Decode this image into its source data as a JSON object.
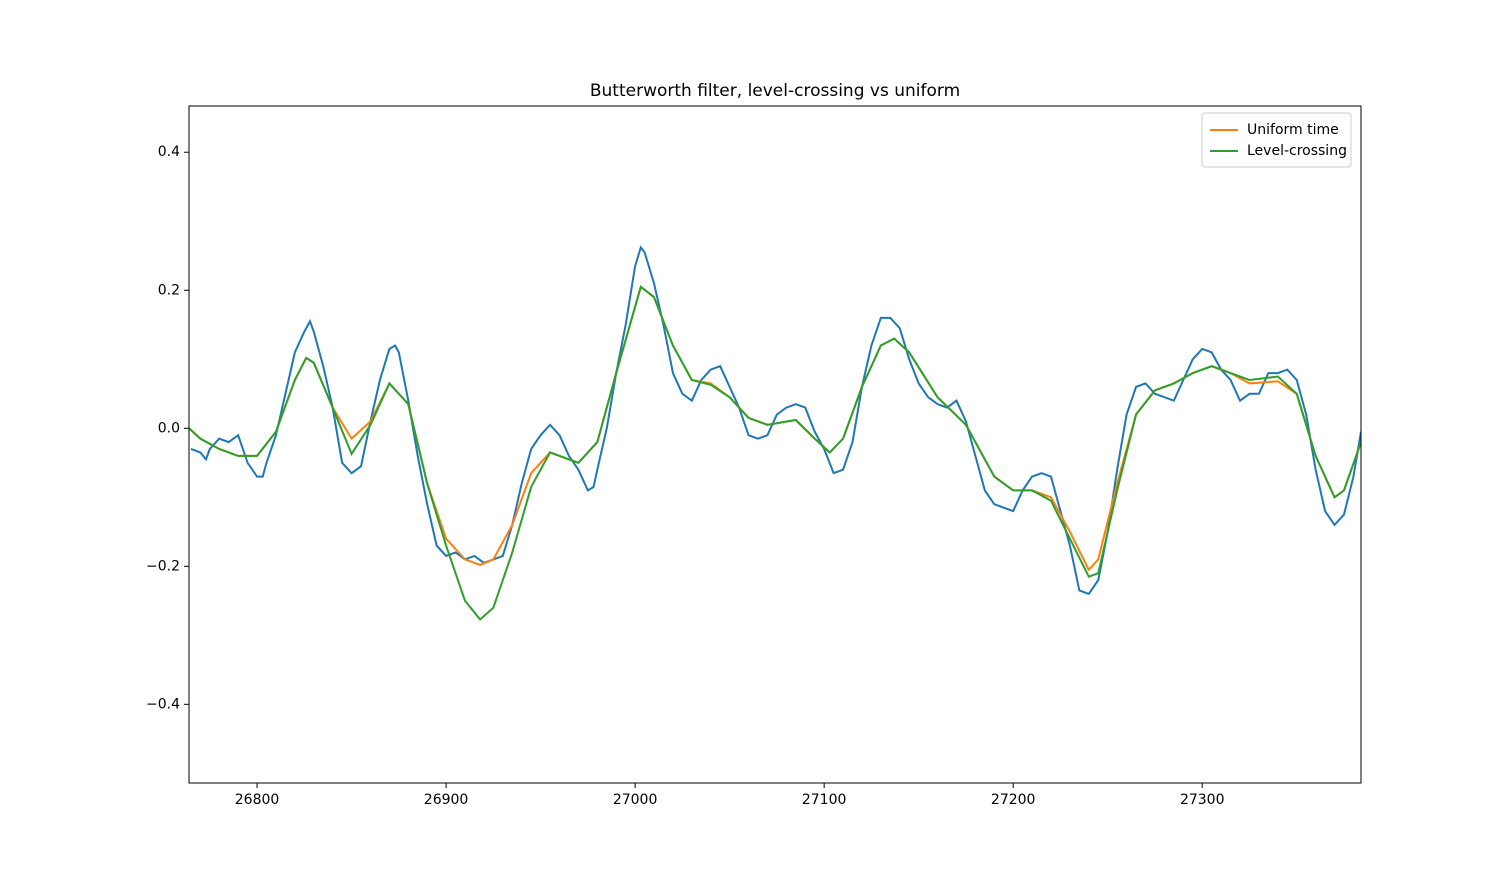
{
  "chart_data": {
    "type": "line",
    "title": "Butterworth filter, level-crossing vs uniform",
    "xlim": [
      26764,
      27384
    ],
    "xticks": [
      26800,
      26900,
      27000,
      27100,
      27200,
      27300
    ],
    "ylim": [
      -0.514,
      0.467
    ],
    "yticks": [
      {
        "value": -0.4,
        "label": "−0.4"
      },
      {
        "value": -0.2,
        "label": "−0.2"
      },
      {
        "value": 0,
        "label": "0.0"
      },
      0.2,
      0.4
    ],
    "legend": "upper right",
    "series": [
      {
        "color": "#1f77b4",
        "x": [
          26765,
          26770,
          26773,
          26775,
          26780,
          26785,
          26790,
          26795,
          26800,
          26803,
          26805,
          26810,
          26815,
          26820,
          26825,
          26828,
          26830,
          26835,
          26840,
          26845,
          26850,
          26855,
          26860,
          26865,
          26870,
          26873,
          26875,
          26880,
          26885,
          26890,
          26895,
          26900,
          26905,
          26910,
          26915,
          26920,
          26925,
          26930,
          26935,
          26940,
          26945,
          26950,
          26955,
          26960,
          26965,
          26970,
          26975,
          26978,
          26980,
          26985,
          26990,
          26995,
          27000,
          27003,
          27005,
          27010,
          27015,
          27020,
          27025,
          27030,
          27035,
          27040,
          27045,
          27050,
          27055,
          27060,
          27065,
          27070,
          27075,
          27080,
          27085,
          27090,
          27095,
          27100,
          27105,
          27110,
          27115,
          27120,
          27125,
          27130,
          27135,
          27140,
          27145,
          27150,
          27155,
          27160,
          27165,
          27170,
          27175,
          27180,
          27185,
          27190,
          27195,
          27200,
          27205,
          27210,
          27215,
          27220,
          27225,
          27230,
          27235,
          27240,
          27245,
          27250,
          27255,
          27260,
          27265,
          27270,
          27275,
          27280,
          27285,
          27290,
          27295,
          27300,
          27305,
          27310,
          27315,
          27320,
          27325,
          27330,
          27335,
          27340,
          27345,
          27350,
          27355,
          27360,
          27365,
          27370,
          27375,
          27380,
          27384
        ],
        "values": [
          -0.03,
          -0.035,
          -0.045,
          -0.03,
          -0.015,
          -0.02,
          -0.01,
          -0.05,
          -0.07,
          -0.07,
          -0.05,
          -0.01,
          0.05,
          0.11,
          0.14,
          0.155,
          0.14,
          0.09,
          0.03,
          -0.05,
          -0.065,
          -0.055,
          0.01,
          0.07,
          0.115,
          0.12,
          0.11,
          0.04,
          -0.04,
          -0.11,
          -0.17,
          -0.185,
          -0.18,
          -0.19,
          -0.185,
          -0.195,
          -0.19,
          -0.185,
          -0.14,
          -0.08,
          -0.03,
          -0.01,
          0.005,
          -0.01,
          -0.04,
          -0.06,
          -0.09,
          -0.085,
          -0.06,
          0.0,
          0.08,
          0.15,
          0.235,
          0.262,
          0.255,
          0.21,
          0.15,
          0.08,
          0.05,
          0.04,
          0.07,
          0.085,
          0.09,
          0.06,
          0.03,
          -0.01,
          -0.015,
          -0.01,
          0.02,
          0.03,
          0.035,
          0.03,
          -0.005,
          -0.03,
          -0.065,
          -0.06,
          -0.02,
          0.06,
          0.12,
          0.16,
          0.16,
          0.145,
          0.1,
          0.065,
          0.045,
          0.035,
          0.03,
          0.04,
          0.01,
          -0.04,
          -0.09,
          -0.11,
          -0.115,
          -0.12,
          -0.09,
          -0.07,
          -0.065,
          -0.07,
          -0.12,
          -0.17,
          -0.235,
          -0.24,
          -0.22,
          -0.15,
          -0.06,
          0.02,
          0.06,
          0.065,
          0.05,
          0.045,
          0.04,
          0.07,
          0.1,
          0.115,
          0.11,
          0.085,
          0.07,
          0.04,
          0.05,
          0.05,
          0.08,
          0.08,
          0.085,
          0.07,
          0.02,
          -0.06,
          -0.12,
          -0.14,
          -0.125,
          -0.07,
          -0.005
        ]
      },
      {
        "name": "Uniform time",
        "color": "#ff7f0e",
        "x": [
          26764,
          26770,
          26780,
          26790,
          26800,
          26810,
          26820,
          26826,
          26830,
          26840,
          26850,
          26860,
          26870,
          26880,
          26890,
          26900,
          26910,
          26918,
          26925,
          26935,
          26945,
          26955,
          26970,
          26980,
          26990,
          27003,
          27010,
          27020,
          27030,
          27040,
          27050,
          27060,
          27070,
          27085,
          27095,
          27103,
          27110,
          27120,
          27130,
          27137,
          27145,
          27160,
          27175,
          27190,
          27200,
          27210,
          27220,
          27230,
          27240,
          27245,
          27255,
          27265,
          27275,
          27285,
          27295,
          27305,
          27315,
          27325,
          27340,
          27350,
          27360,
          27370,
          27375,
          27384
        ],
        "values": [
          0.0,
          -0.015,
          -0.03,
          -0.04,
          -0.04,
          -0.005,
          0.07,
          0.102,
          0.095,
          0.03,
          -0.015,
          0.01,
          0.065,
          0.035,
          -0.08,
          -0.16,
          -0.19,
          -0.198,
          -0.19,
          -0.14,
          -0.065,
          -0.035,
          -0.05,
          -0.02,
          0.08,
          0.205,
          0.19,
          0.12,
          0.07,
          0.065,
          0.045,
          0.015,
          0.005,
          0.012,
          -0.015,
          -0.035,
          -0.015,
          0.06,
          0.12,
          0.13,
          0.11,
          0.045,
          0.005,
          -0.07,
          -0.09,
          -0.09,
          -0.1,
          -0.15,
          -0.205,
          -0.19,
          -0.08,
          0.02,
          0.055,
          0.065,
          0.08,
          0.09,
          0.08,
          0.065,
          0.068,
          0.05,
          -0.04,
          -0.1,
          -0.09,
          -0.02
        ]
      },
      {
        "name": "Level-crossing",
        "color": "#2ca02c",
        "x": [
          26764,
          26770,
          26780,
          26790,
          26800,
          26810,
          26820,
          26826,
          26830,
          26840,
          26850,
          26860,
          26870,
          26880,
          26890,
          26900,
          26910,
          26918,
          26925,
          26935,
          26945,
          26955,
          26970,
          26980,
          26990,
          27003,
          27010,
          27020,
          27030,
          27040,
          27050,
          27060,
          27070,
          27085,
          27095,
          27103,
          27110,
          27120,
          27130,
          27137,
          27145,
          27160,
          27175,
          27190,
          27200,
          27210,
          27220,
          27230,
          27240,
          27245,
          27255,
          27265,
          27275,
          27285,
          27295,
          27305,
          27315,
          27325,
          27340,
          27350,
          27360,
          27370,
          27375,
          27384
        ],
        "values": [
          0.0,
          -0.015,
          -0.03,
          -0.04,
          -0.04,
          -0.005,
          0.07,
          0.102,
          0.095,
          0.03,
          -0.037,
          0.005,
          0.065,
          0.035,
          -0.08,
          -0.17,
          -0.25,
          -0.277,
          -0.26,
          -0.18,
          -0.085,
          -0.035,
          -0.05,
          -0.02,
          0.08,
          0.205,
          0.19,
          0.12,
          0.07,
          0.063,
          0.045,
          0.015,
          0.005,
          0.012,
          -0.015,
          -0.035,
          -0.015,
          0.06,
          0.12,
          0.13,
          0.11,
          0.045,
          0.005,
          -0.07,
          -0.09,
          -0.09,
          -0.105,
          -0.16,
          -0.215,
          -0.21,
          -0.09,
          0.02,
          0.055,
          0.065,
          0.08,
          0.09,
          0.08,
          0.07,
          0.075,
          0.05,
          -0.04,
          -0.1,
          -0.09,
          -0.02
        ]
      }
    ]
  }
}
